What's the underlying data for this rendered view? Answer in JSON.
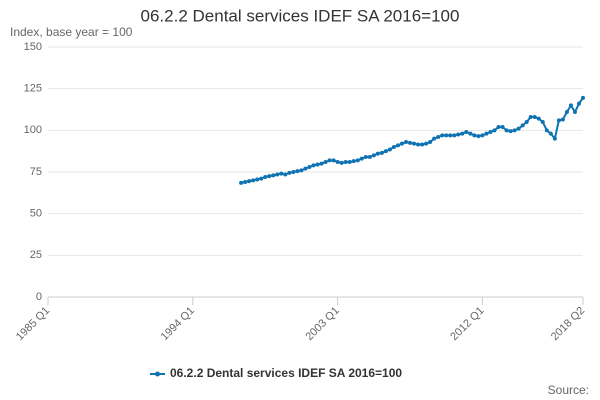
{
  "chart_data": {
    "type": "line",
    "title": "06.2.2 Dental services IDEF SA 2016=100",
    "ylabel": "Index, base year = 100",
    "source": "Source:",
    "categories": [
      "1985 Q1",
      null,
      null,
      null,
      null,
      null,
      null,
      null,
      null,
      null,
      null,
      null,
      null,
      null,
      null,
      null,
      null,
      null,
      null,
      null,
      null,
      null,
      null,
      null,
      null,
      null,
      null,
      null,
      null,
      null,
      null,
      null,
      null,
      null,
      null,
      null,
      "1994 Q1",
      null,
      null,
      null,
      null,
      null,
      null,
      null,
      null,
      null,
      null,
      null,
      null,
      null,
      null,
      null,
      null,
      null,
      null,
      null,
      null,
      null,
      null,
      null,
      null,
      null,
      null,
      null,
      null,
      null,
      null,
      null,
      null,
      null,
      null,
      null,
      "2003 Q1",
      null,
      null,
      null,
      null,
      null,
      null,
      null,
      null,
      null,
      null,
      null,
      null,
      null,
      null,
      null,
      null,
      null,
      null,
      null,
      null,
      null,
      null,
      null,
      null,
      null,
      null,
      null,
      null,
      null,
      null,
      null,
      null,
      null,
      null,
      null,
      "2012 Q1",
      null,
      null,
      null,
      null,
      null,
      null,
      null,
      null,
      null,
      null,
      null,
      null,
      null,
      null,
      null,
      null,
      null,
      null,
      null,
      null,
      null,
      null,
      null,
      null,
      "2018 Q2"
    ],
    "series": [
      {
        "name": "06.2.2 Dental services IDEF SA 2016=100",
        "color": "#0f73b3",
        "values": [
          null,
          null,
          null,
          null,
          null,
          null,
          null,
          null,
          null,
          null,
          null,
          null,
          null,
          null,
          null,
          null,
          null,
          null,
          null,
          null,
          null,
          null,
          null,
          null,
          null,
          null,
          null,
          null,
          null,
          null,
          null,
          null,
          null,
          null,
          null,
          null,
          null,
          null,
          null,
          null,
          null,
          null,
          null,
          null,
          null,
          null,
          null,
          null,
          68.5,
          69,
          69.5,
          70,
          70.5,
          71,
          72,
          72.5,
          73,
          73.5,
          74,
          73.5,
          74.5,
          75,
          75.5,
          76,
          77,
          78,
          79,
          79.5,
          80,
          81,
          82,
          82,
          81,
          80.5,
          81,
          81,
          81.5,
          82,
          83,
          84,
          84,
          85,
          86,
          86.5,
          87.5,
          88.5,
          90,
          91,
          92,
          93,
          92.5,
          92,
          91.5,
          91.5,
          92,
          93,
          95,
          96,
          97,
          97,
          97,
          97,
          97.5,
          98,
          99,
          98,
          97,
          96.5,
          97,
          98,
          99,
          100,
          102,
          102,
          100,
          99.5,
          100,
          101,
          103,
          105,
          108,
          108,
          107,
          105,
          100,
          98,
          95,
          106,
          106.5,
          111,
          115,
          111,
          116,
          119.5
        ]
      }
    ],
    "ylim": [
      0,
      150
    ],
    "yticks": [
      0,
      25,
      50,
      75,
      100,
      125,
      150
    ],
    "grid": true
  }
}
